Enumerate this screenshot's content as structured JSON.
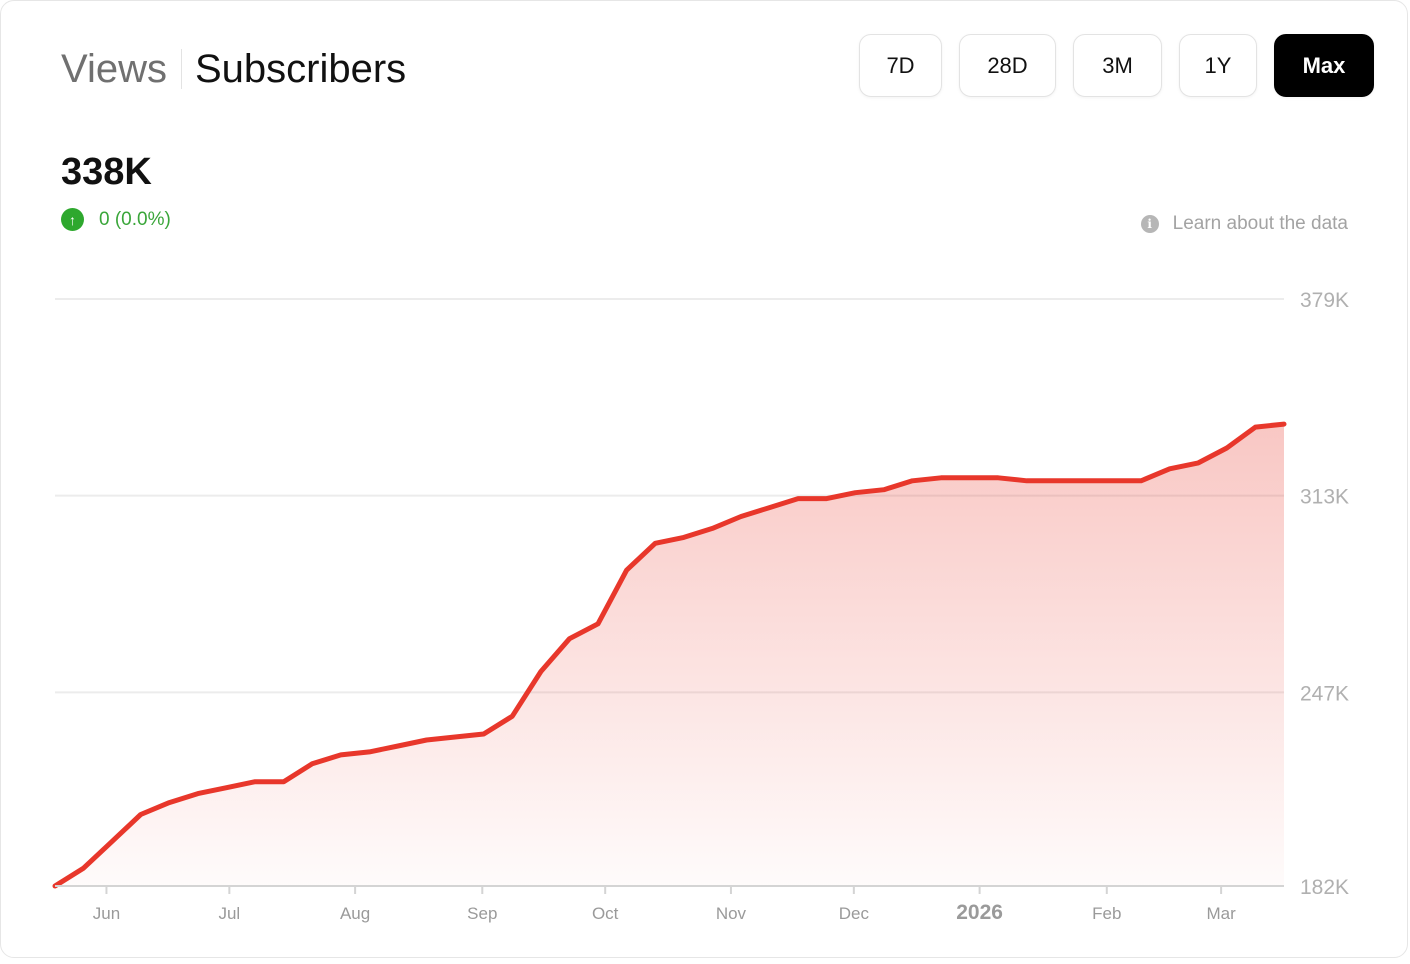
{
  "tabs": {
    "views": "Views",
    "subscribers": "Subscribers"
  },
  "ranges": [
    "7D",
    "28D",
    "3M",
    "1Y",
    "Max"
  ],
  "active_range": "Max",
  "summary": {
    "value": "338K",
    "delta": "0 (0.0%)",
    "delta_icon": "arrow-up-icon"
  },
  "learn_link": "Learn about the data",
  "colors": {
    "line": "#e8372b",
    "positive": "#2ea82e",
    "active_button": "#000000"
  },
  "chart_data": {
    "type": "area",
    "ylim": [
      182000,
      379000
    ],
    "yticks": [
      379000,
      313000,
      247000,
      182000
    ],
    "ytick_labels": [
      "379K",
      "313K",
      "247K",
      "182K"
    ],
    "xtick_labels": [
      "Jun",
      "Jul",
      "Aug",
      "Sep",
      "Oct",
      "Nov",
      "Dec",
      "2026",
      "Feb",
      "Mar"
    ],
    "xtick_positions": [
      1.8,
      6.1,
      10.5,
      14.95,
      19.25,
      23.65,
      27.95,
      32.35,
      36.8,
      40.8
    ],
    "x": [
      0,
      1,
      2,
      3,
      4,
      5,
      6,
      7,
      8,
      9,
      10,
      11,
      12,
      13,
      14,
      15,
      16,
      17,
      18,
      19,
      20,
      21,
      22,
      23,
      24,
      25,
      26,
      27,
      28,
      29,
      30,
      31,
      32,
      33,
      34,
      35,
      36,
      37,
      38,
      39,
      40,
      41,
      42,
      43
    ],
    "series": [
      {
        "values": [
          182000,
          188000,
          197000,
          206000,
          210000,
          213000,
          215000,
          217000,
          217000,
          223000,
          226000,
          227000,
          229000,
          231000,
          232000,
          233000,
          239000,
          254000,
          265000,
          270000,
          288000,
          297000,
          299000,
          302000,
          306000,
          309000,
          312000,
          312000,
          314000,
          315000,
          318000,
          319000,
          319000,
          319000,
          318000,
          318000,
          318000,
          318000,
          318000,
          322000,
          324000,
          329000,
          336000,
          337000
        ]
      }
    ],
    "grid": true
  }
}
